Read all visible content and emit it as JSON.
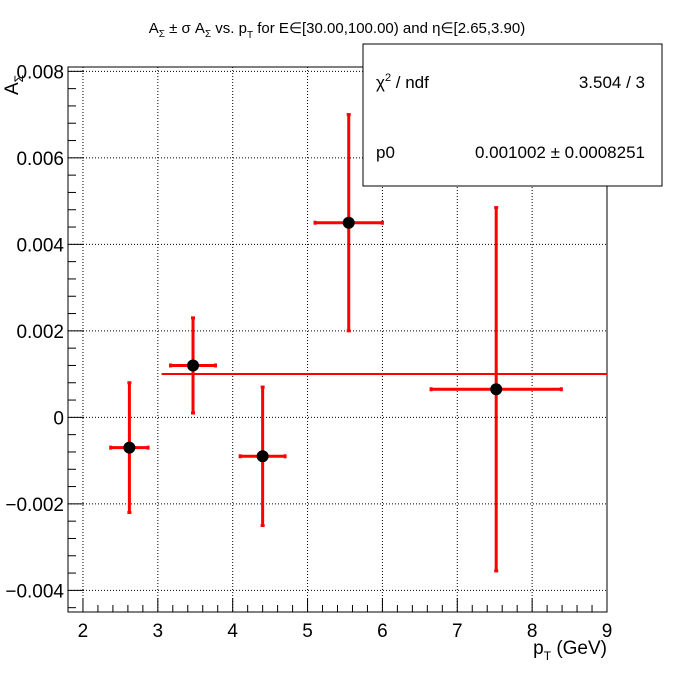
{
  "chart_data": {
    "type": "scatter",
    "title": "A_Σ ± σ A_Σ vs. p_T for E∈[30.00,100.00) and η∈[2.65,3.90)",
    "title_parts": {
      "a1": "A",
      "sub_sigma1": "Σ",
      "pm_sigma": " ± σ A",
      "sub_sigma2": "Σ",
      "vs": " vs. p",
      "sub_T": "T",
      "rest": " for E∈[30.00,100.00) and η∈[2.65,3.90)"
    },
    "xlabel": "p",
    "xlabel_sub": "T",
    "xlabel_unit": " (GeV)",
    "ylabel": "A",
    "ylabel_sub": "Σ",
    "xlim": [
      1.8,
      9.0
    ],
    "ylim": [
      -0.0045,
      0.0081
    ],
    "x_ticks": [
      2,
      3,
      4,
      5,
      6,
      7,
      8,
      9
    ],
    "x_tick_labels": [
      "2",
      "3",
      "4",
      "5",
      "6",
      "7",
      "8",
      "9"
    ],
    "y_ticks": [
      -0.004,
      -0.002,
      0,
      0.002,
      0.004,
      0.006,
      0.008
    ],
    "y_tick_labels": [
      "−0.004",
      "−0.002",
      "0",
      "0.002",
      "0.004",
      "0.006",
      "0.008"
    ],
    "grid": true,
    "points": [
      {
        "x": 2.62,
        "y": -0.0007,
        "xerr": 0.25,
        "yerr": 0.0015
      },
      {
        "x": 3.47,
        "y": 0.0012,
        "xerr": 0.3,
        "yerr": 0.0011
      },
      {
        "x": 4.4,
        "y": -0.0009,
        "xerr": 0.3,
        "yerr": 0.0016
      },
      {
        "x": 5.55,
        "y": 0.0045,
        "xerr": 0.45,
        "yerr": 0.0025
      },
      {
        "x": 7.52,
        "y": 0.00065,
        "xerr": 0.87,
        "yerr": 0.0042
      }
    ],
    "fit": {
      "p0": 0.001002,
      "x_range": [
        3.05,
        9.0
      ]
    },
    "stats_box": {
      "row1_label": "χ",
      "row1_sup": "2",
      "row1_label_rest": " / ndf",
      "row1_value": "3.504 / 3",
      "row2_label": "p0",
      "row2_value": "0.001002 ± 0.0008251"
    },
    "colors": {
      "error_bars": "#ff0000",
      "markers": "#000000",
      "fit_line": "#ff0000"
    }
  }
}
